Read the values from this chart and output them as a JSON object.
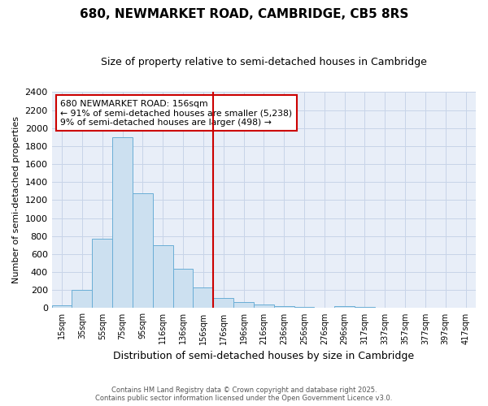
{
  "title": "680, NEWMARKET ROAD, CAMBRIDGE, CB5 8RS",
  "subtitle": "Size of property relative to semi-detached houses in Cambridge",
  "xlabel": "Distribution of semi-detached houses by size in Cambridge",
  "ylabel": "Number of semi-detached properties",
  "annotation_title": "680 NEWMARKET ROAD: 156sqm",
  "annotation_line1": "← 91% of semi-detached houses are smaller (5,238)",
  "annotation_line2": "9% of semi-detached houses are larger (498) →",
  "footer1": "Contains HM Land Registry data © Crown copyright and database right 2025.",
  "footer2": "Contains public sector information licensed under the Open Government Licence v3.0.",
  "bar_labels": [
    "15sqm",
    "35sqm",
    "55sqm",
    "75sqm",
    "95sqm",
    "116sqm",
    "136sqm",
    "156sqm",
    "176sqm",
    "196sqm",
    "216sqm",
    "236sqm",
    "256sqm",
    "276sqm",
    "296sqm",
    "317sqm",
    "337sqm",
    "357sqm",
    "377sqm",
    "397sqm",
    "417sqm"
  ],
  "bar_values": [
    30,
    200,
    770,
    1900,
    1280,
    700,
    440,
    230,
    110,
    65,
    40,
    25,
    10,
    0,
    25,
    10,
    5,
    5,
    0,
    0,
    0
  ],
  "bar_color": "#cce0f0",
  "bar_edge_color": "#6aaed6",
  "marker_color": "#cc0000",
  "grid_color": "#c8d4e8",
  "bg_color": "#e8eef8",
  "ylim": [
    0,
    2400
  ],
  "yticks": [
    0,
    200,
    400,
    600,
    800,
    1000,
    1200,
    1400,
    1600,
    1800,
    2000,
    2200,
    2400
  ],
  "marker_bar_idx": 7
}
